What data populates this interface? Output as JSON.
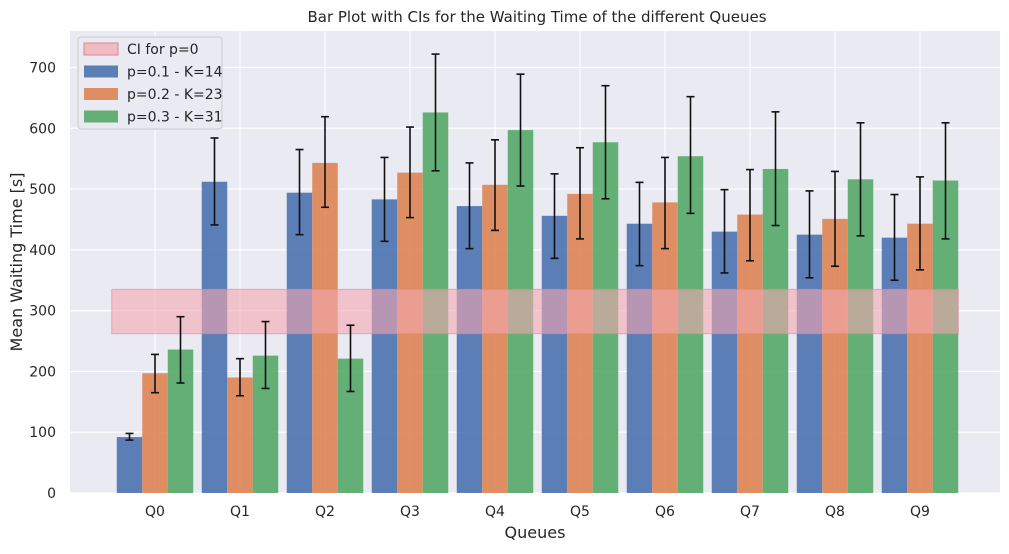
{
  "chart_data": {
    "type": "bar",
    "title": "Bar Plot with CIs for the Waiting Time of the different Queues",
    "xlabel": "Queues",
    "ylabel": "Mean Waiting Time [s]",
    "ylim": [
      0,
      760
    ],
    "yticks": [
      0,
      100,
      200,
      300,
      400,
      500,
      600,
      700
    ],
    "grid": true,
    "legend_position": "top-left",
    "categories": [
      "Q0",
      "Q1",
      "Q2",
      "Q3",
      "Q4",
      "Q5",
      "Q6",
      "Q7",
      "Q8",
      "Q9"
    ],
    "ci_band": {
      "label": "CI for p=0",
      "lower": 262,
      "upper": 335,
      "color": "#f4a6b0"
    },
    "series": [
      {
        "name": "p=0.1 - K=14",
        "color": "#4c72b0",
        "values": [
          92,
          512,
          494,
          483,
          472,
          456,
          443,
          430,
          425,
          420
        ],
        "ci_low": [
          87,
          441,
          425,
          414,
          402,
          386,
          374,
          362,
          354,
          350
        ],
        "ci_high": [
          98,
          584,
          565,
          552,
          543,
          525,
          511,
          499,
          497,
          491
        ]
      },
      {
        "name": "p=0.2 - K=23",
        "color": "#dd8452",
        "values": [
          197,
          190,
          543,
          527,
          507,
          492,
          478,
          458,
          451,
          443
        ],
        "ci_low": [
          165,
          160,
          470,
          453,
          432,
          418,
          402,
          382,
          373,
          367
        ],
        "ci_high": [
          228,
          221,
          619,
          602,
          581,
          568,
          552,
          532,
          529,
          520
        ]
      },
      {
        "name": "p=0.3 - K=31",
        "color": "#55a868",
        "values": [
          236,
          226,
          221,
          626,
          597,
          577,
          554,
          533,
          516,
          514
        ],
        "ci_low": [
          181,
          172,
          167,
          530,
          505,
          484,
          460,
          440,
          423,
          418
        ],
        "ci_high": [
          290,
          282,
          276,
          722,
          689,
          670,
          652,
          627,
          609,
          609
        ]
      }
    ]
  }
}
